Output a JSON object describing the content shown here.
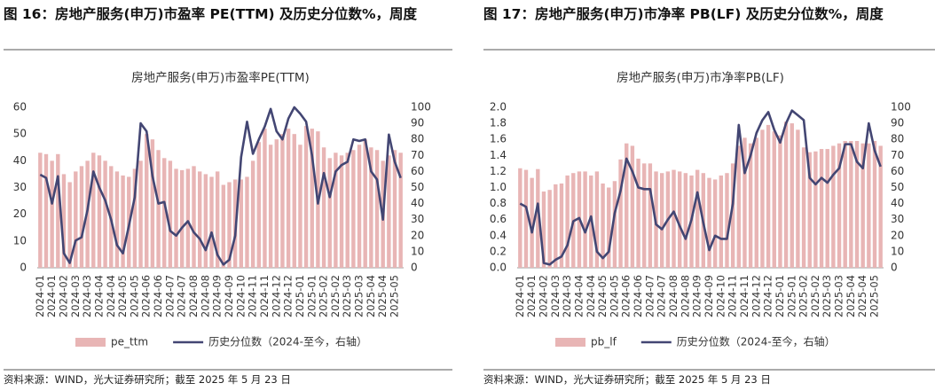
{
  "figures": [
    {
      "caption": "图 16：房地产服务(申万)市盈率 PE(TTM) 及历史分位数%，周度",
      "source": "资料来源：WIND，光大证券研究所；截至 2025 年 5 月 23 日"
    },
    {
      "caption": "图 17：房地产服务(申万)市净率 PB(LF) 及历史分位数%，周度",
      "source": "资料来源：WIND，光大证券研究所；截至 2025 年 5 月 23 日"
    }
  ],
  "chart_data": [
    {
      "type": "bar",
      "title": "房地产服务(申万)市盈率PE(TTM)",
      "categories": [
        "2024-01",
        null,
        "2024-01",
        null,
        "2024-02",
        null,
        "2024-03",
        null,
        "2024-03",
        null,
        "2024-04",
        null,
        "2024-04",
        null,
        "2024-05",
        null,
        "2024-05",
        null,
        "2024-06",
        null,
        "2024-06",
        null,
        "2024-07",
        null,
        "2024-07",
        null,
        "2024-08",
        null,
        "2024-08",
        null,
        "2024-09",
        null,
        "2024-09",
        null,
        "2024-10",
        null,
        "2024-11",
        null,
        "2024-11",
        null,
        "2024-12",
        null,
        "2024-12",
        null,
        "2025-01",
        null,
        "2025-01",
        null,
        "2025-02",
        null,
        "2025-02",
        null,
        "2025-03",
        null,
        "2025-03",
        null,
        "2025-04",
        null,
        "2025-04",
        null,
        "2025-05",
        null
      ],
      "series": [
        {
          "name": "pe_ttm",
          "type": "bar",
          "color": "#e8b5b5",
          "values": [
            43,
            42.5,
            40,
            42.5,
            35,
            32,
            36,
            38,
            40,
            43,
            42,
            40,
            38,
            36,
            34.5,
            34,
            37,
            40,
            50,
            48,
            44,
            41,
            40,
            37,
            36.5,
            37,
            38,
            36,
            35,
            34,
            36,
            31,
            32,
            33,
            33,
            34,
            40,
            47,
            52,
            46,
            48,
            50,
            52,
            50,
            46,
            53,
            52,
            51,
            45,
            41,
            43,
            42,
            43,
            44,
            46,
            48,
            45,
            44,
            40,
            42,
            44,
            43
          ]
        },
        {
          "name": "历史分位数（2024-至今，右轴）",
          "type": "line",
          "axis": "y2",
          "color": "#434673",
          "values": [
            58,
            56,
            40,
            57,
            9,
            3,
            17,
            19,
            36,
            60,
            50,
            42,
            30,
            14,
            9,
            26,
            44,
            90,
            85,
            57,
            40,
            41,
            23,
            20,
            25,
            29,
            22,
            18,
            11,
            22,
            8,
            2,
            5,
            20,
            69,
            91,
            71,
            80,
            88,
            99,
            85,
            80,
            93,
            100,
            96,
            91,
            70,
            40,
            59,
            44,
            60,
            64,
            66,
            80,
            79,
            80,
            60,
            55,
            30,
            83,
            66,
            56
          ]
        }
      ],
      "ylim": [
        0,
        60
      ],
      "yticks": [
        0,
        10,
        20,
        30,
        40,
        50,
        60
      ],
      "y2lim": [
        0,
        100
      ],
      "y2ticks": [
        0,
        10,
        20,
        30,
        40,
        50,
        60,
        70,
        80,
        90,
        100
      ]
    },
    {
      "type": "bar",
      "title": "房地产服务(申万)市净率PB(LF)",
      "categories": [
        "2024-01",
        null,
        "2024-01",
        null,
        "2024-02",
        null,
        "2024-03",
        null,
        "2024-03",
        null,
        "2024-04",
        null,
        "2024-04",
        null,
        "2024-05",
        null,
        "2024-05",
        null,
        "2024-06",
        null,
        "2024-06",
        null,
        "2024-07",
        null,
        "2024-07",
        null,
        "2024-08",
        null,
        "2024-08",
        null,
        "2024-09",
        null,
        "2024-09",
        null,
        "2024-10",
        null,
        "2024-11",
        null,
        "2024-11",
        null,
        "2024-12",
        null,
        "2024-12",
        null,
        "2025-01",
        null,
        "2025-01",
        null,
        "2025-02",
        null,
        "2025-02",
        null,
        "2025-03",
        null,
        "2025-03",
        null,
        "2025-04",
        null,
        "2025-04",
        null,
        "2025-05",
        null
      ],
      "series": [
        {
          "name": "pb_lf",
          "type": "bar",
          "color": "#e8b5b5",
          "values": [
            1.24,
            1.22,
            1.12,
            1.23,
            0.95,
            0.97,
            1.04,
            1.05,
            1.15,
            1.18,
            1.2,
            1.2,
            1.15,
            1.2,
            1.05,
            1.0,
            1.08,
            1.35,
            1.55,
            1.52,
            1.36,
            1.3,
            1.3,
            1.2,
            1.18,
            1.2,
            1.22,
            1.2,
            1.18,
            1.15,
            1.22,
            1.18,
            1.12,
            1.1,
            1.15,
            1.18,
            1.3,
            1.52,
            1.62,
            1.55,
            1.62,
            1.72,
            1.78,
            1.7,
            1.65,
            1.82,
            1.8,
            1.72,
            1.5,
            1.44,
            1.45,
            1.48,
            1.48,
            1.52,
            1.55,
            1.58,
            1.58,
            1.58,
            1.55,
            1.55,
            1.58,
            1.52
          ]
        },
        {
          "name": "历史分位数（2024-至今，右轴）",
          "type": "line",
          "axis": "y2",
          "color": "#434673",
          "values": [
            40,
            38,
            22,
            40,
            3,
            2,
            5,
            7,
            14,
            29,
            31,
            22,
            32,
            10,
            6,
            10,
            34,
            48,
            68,
            60,
            50,
            49,
            49,
            27,
            24,
            30,
            35,
            26,
            18,
            30,
            47,
            28,
            11,
            20,
            18,
            18,
            40,
            89,
            59,
            70,
            84,
            92,
            97,
            86,
            78,
            90,
            98,
            95,
            92,
            56,
            52,
            56,
            53,
            58,
            62,
            77,
            77,
            66,
            62,
            90,
            73,
            63
          ]
        }
      ],
      "ylim": [
        0,
        2
      ],
      "yticks": [
        {
          "value": 0,
          "label": "0.0"
        },
        0.2,
        0.4,
        0.6,
        0.8,
        {
          "value": 1,
          "label": "1.0"
        },
        1.2,
        1.4,
        1.6,
        1.8,
        {
          "value": 2,
          "label": "2.0"
        }
      ],
      "y2lim": [
        0,
        100
      ],
      "y2ticks": [
        0,
        10,
        20,
        30,
        40,
        50,
        60,
        70,
        80,
        90,
        100
      ]
    }
  ]
}
